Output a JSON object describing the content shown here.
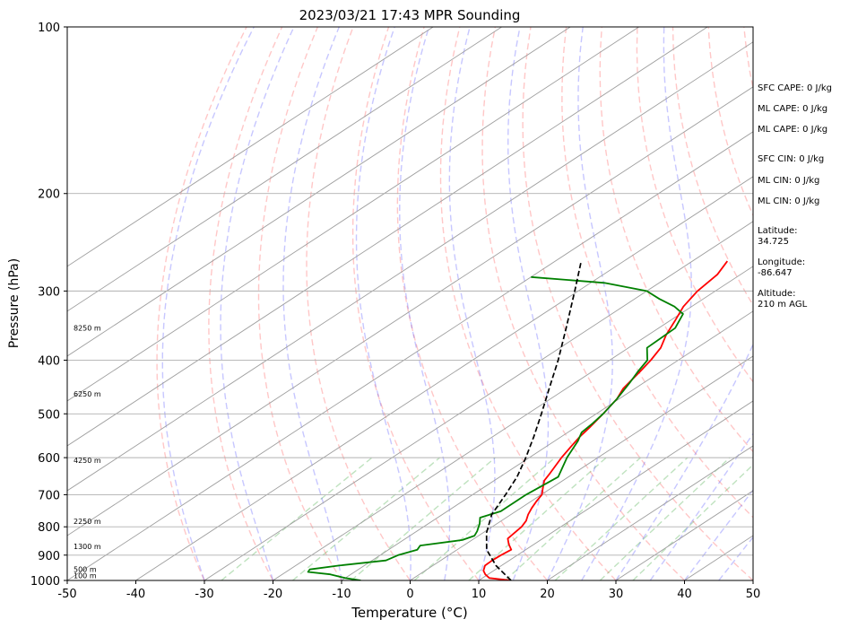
{
  "chart_data": {
    "type": "line",
    "title": "2023/03/21 17:43 MPR Sounding",
    "xlabel": "Temperature (°C)",
    "ylabel": "Pressure (hPa)",
    "xlim": [
      -50,
      50
    ],
    "ylim": [
      1000,
      100
    ],
    "y_scale": "log",
    "grid": true,
    "x_ticks": [
      "-50",
      "-40",
      "-30",
      "-20",
      "-10",
      "0",
      "10",
      "20",
      "30",
      "40",
      "50"
    ],
    "y_ticks": [
      {
        "p": 100,
        "label": "100"
      },
      {
        "p": 200,
        "label": "200"
      },
      {
        "p": 300,
        "label": "300"
      },
      {
        "p": 400,
        "label": "400"
      },
      {
        "p": 500,
        "label": "500"
      },
      {
        "p": 600,
        "label": "600"
      },
      {
        "p": 700,
        "label": "700"
      },
      {
        "p": 800,
        "label": "800"
      },
      {
        "p": 900,
        "label": "900"
      },
      {
        "p": 1000,
        "label": "1000"
      }
    ],
    "height_labels": [
      {
        "p": 980,
        "label": "100 m"
      },
      {
        "p": 955,
        "label": "500 m"
      },
      {
        "p": 868,
        "label": "1300 m"
      },
      {
        "p": 781,
        "label": "2250 m"
      },
      {
        "p": 607,
        "label": "4250 m"
      },
      {
        "p": 460,
        "label": "6250 m"
      },
      {
        "p": 350,
        "label": "8250 m"
      }
    ],
    "series": [
      {
        "color": "#ff0000",
        "points": [
          {
            "p": 1000,
            "t": 14.7
          },
          {
            "p": 990,
            "t": 11.0
          },
          {
            "p": 975,
            "t": 9.6
          },
          {
            "p": 960,
            "t": 8.5
          },
          {
            "p": 940,
            "t": 7.6
          },
          {
            "p": 920,
            "t": 7.5
          },
          {
            "p": 900,
            "t": 7.6
          },
          {
            "p": 880,
            "t": 7.9
          },
          {
            "p": 860,
            "t": 6.3
          },
          {
            "p": 840,
            "t": 4.9
          },
          {
            "p": 820,
            "t": 4.6
          },
          {
            "p": 800,
            "t": 4.3
          },
          {
            "p": 780,
            "t": 3.6
          },
          {
            "p": 760,
            "t": 2.5
          },
          {
            "p": 740,
            "t": 1.6
          },
          {
            "p": 720,
            "t": 0.8
          },
          {
            "p": 700,
            "t": 0.1
          },
          {
            "p": 680,
            "t": -1.3
          },
          {
            "p": 660,
            "t": -2.7
          },
          {
            "p": 640,
            "t": -3.5
          },
          {
            "p": 600,
            "t": -5.3
          },
          {
            "p": 570,
            "t": -6.5
          },
          {
            "p": 550,
            "t": -7.3
          },
          {
            "p": 530,
            "t": -7.9
          },
          {
            "p": 500,
            "t": -9.0
          },
          {
            "p": 470,
            "t": -10.3
          },
          {
            "p": 450,
            "t": -11.7
          },
          {
            "p": 420,
            "t": -13.0
          },
          {
            "p": 400,
            "t": -14.0
          },
          {
            "p": 380,
            "t": -15.3
          },
          {
            "p": 360,
            "t": -17.4
          },
          {
            "p": 340,
            "t": -19.2
          },
          {
            "p": 320,
            "t": -21.2
          },
          {
            "p": 300,
            "t": -22.6
          },
          {
            "p": 280,
            "t": -23.4
          },
          {
            "p": 265,
            "t": -24.9
          }
        ]
      },
      {
        "color": "#008000",
        "points": [
          {
            "p": 1000,
            "t": -7.2
          },
          {
            "p": 990,
            "t": -10.0
          },
          {
            "p": 975,
            "t": -13.0
          },
          {
            "p": 965,
            "t": -16.8
          },
          {
            "p": 955,
            "t": -17.1
          },
          {
            "p": 940,
            "t": -13.7
          },
          {
            "p": 920,
            "t": -8.0
          },
          {
            "p": 900,
            "t": -7.4
          },
          {
            "p": 880,
            "t": -5.8
          },
          {
            "p": 865,
            "t": -6.3
          },
          {
            "p": 845,
            "t": -1.4
          },
          {
            "p": 830,
            "t": -0.6
          },
          {
            "p": 815,
            "t": -1.2
          },
          {
            "p": 790,
            "t": -2.5
          },
          {
            "p": 770,
            "t": -3.8
          },
          {
            "p": 750,
            "t": -2.2
          },
          {
            "p": 700,
            "t": -2.2
          },
          {
            "p": 650,
            "t": -1.5
          },
          {
            "p": 600,
            "t": -4.5
          },
          {
            "p": 560,
            "t": -6.6
          },
          {
            "p": 540,
            "t": -8.0
          },
          {
            "p": 520,
            "t": -8.4
          },
          {
            "p": 500,
            "t": -9.0
          },
          {
            "p": 470,
            "t": -10.3
          },
          {
            "p": 440,
            "t": -12.0
          },
          {
            "p": 420,
            "t": -13.3
          },
          {
            "p": 400,
            "t": -14.5
          },
          {
            "p": 380,
            "t": -17.3
          },
          {
            "p": 350,
            "t": -17.6
          },
          {
            "p": 330,
            "t": -19.6
          },
          {
            "p": 320,
            "t": -22.5
          },
          {
            "p": 310,
            "t": -26.4
          },
          {
            "p": 300,
            "t": -30.0
          },
          {
            "p": 290,
            "t": -38.0
          },
          {
            "p": 283,
            "t": -50.0
          }
        ]
      },
      {
        "color": "#000000",
        "style": "dashed",
        "points": [
          {
            "p": 1000,
            "t": 14.7
          },
          {
            "p": 940,
            "t": 9.2
          },
          {
            "p": 880,
            "t": 4.3
          },
          {
            "p": 820,
            "t": 0.5
          },
          {
            "p": 760,
            "t": -2.8
          },
          {
            "p": 700,
            "t": -5.2
          },
          {
            "p": 650,
            "t": -7.5
          },
          {
            "p": 600,
            "t": -10.5
          },
          {
            "p": 550,
            "t": -14.0
          },
          {
            "p": 500,
            "t": -18.0
          },
          {
            "p": 450,
            "t": -22.5
          },
          {
            "p": 400,
            "t": -27.5
          },
          {
            "p": 350,
            "t": -33.5
          },
          {
            "p": 300,
            "t": -40.5
          },
          {
            "p": 265,
            "t": -46.2
          }
        ]
      }
    ]
  },
  "sidebar": {
    "sfc_cape": "SFC CAPE: 0 J/kg",
    "ml_cape_1": "ML CAPE: 0 J/kg",
    "ml_cape_2": "ML CAPE: 0 J/kg",
    "sfc_cin": "SFC CIN: 0 J/kg",
    "ml_cin_1": "ML CIN: 0 J/kg",
    "ml_cin_2": "ML CIN: 0 J/kg",
    "latitude_label": "Latitude:",
    "latitude_value": "34.725",
    "longitude_label": "Longitude:",
    "longitude_value": "-86.647",
    "altitude_label": "Altitude:",
    "altitude_value": "210 m AGL"
  }
}
